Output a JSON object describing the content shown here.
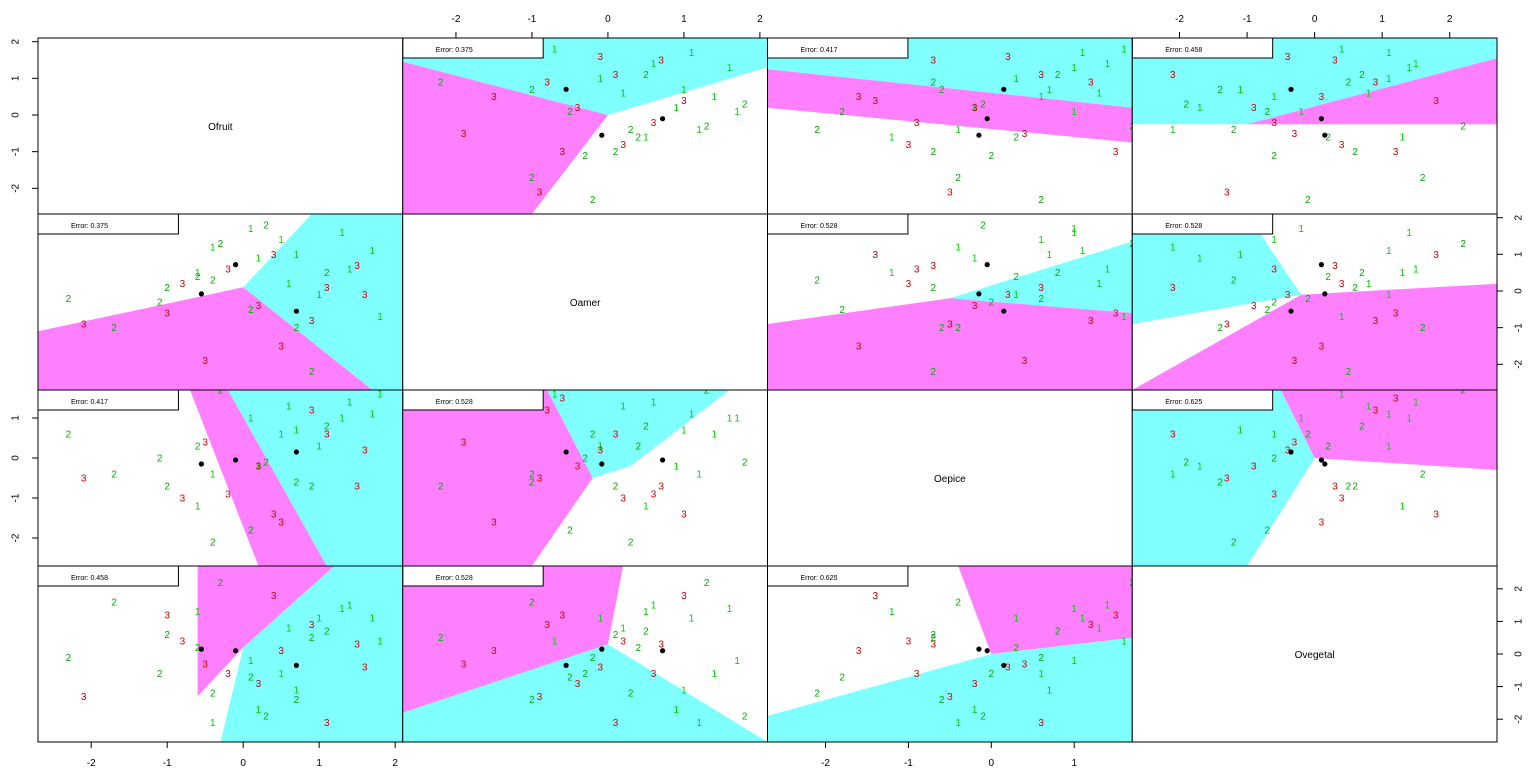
{
  "chart_data": {
    "type": "partition-matrix",
    "variables": [
      "Ofruit",
      "Oamer",
      "Oepice",
      "Ovegetal"
    ],
    "class_colors": {
      "1": "#00cc00",
      "2": "#00aa00",
      "3": "#cc0000"
    },
    "region_colors": {
      "cyan": "#80ffff",
      "magenta": "#ff80ff",
      "white": "#ffffff"
    },
    "centroid_color": "#000000",
    "axis_ticks": {
      "Ofruit": [
        -2,
        -1,
        0,
        1,
        2
      ],
      "Oamer": [
        -2,
        -1,
        0,
        1,
        2
      ],
      "Oepice": [
        -2,
        -1,
        0,
        1
      ],
      "Ovegetal": [
        -2,
        -1,
        0,
        1,
        2
      ]
    },
    "axis_ranges": {
      "Ofruit": [
        -2.7,
        2.1
      ],
      "Oamer": [
        -2.7,
        2.1
      ],
      "Oepice": [
        -2.7,
        1.7
      ],
      "Ovegetal": [
        -2.7,
        2.7
      ]
    },
    "errors": [
      {
        "row": 0,
        "col": 1,
        "label": "Error: 0.375"
      },
      {
        "row": 0,
        "col": 2,
        "label": "Error: 0.417"
      },
      {
        "row": 0,
        "col": 3,
        "label": "Error: 0.458"
      },
      {
        "row": 1,
        "col": 0,
        "label": "Error: 0.375"
      },
      {
        "row": 1,
        "col": 2,
        "label": "Error: 0.528"
      },
      {
        "row": 1,
        "col": 3,
        "label": "Error: 0.528"
      },
      {
        "row": 2,
        "col": 0,
        "label": "Error: 0.417"
      },
      {
        "row": 2,
        "col": 1,
        "label": "Error: 0.528"
      },
      {
        "row": 2,
        "col": 3,
        "label": "Error: 0.625"
      },
      {
        "row": 3,
        "col": 0,
        "label": "Error: 0.458"
      },
      {
        "row": 3,
        "col": 1,
        "label": "Error: 0.528"
      },
      {
        "row": 3,
        "col": 2,
        "label": "Error: 0.625"
      }
    ],
    "points": [
      {
        "Ofruit": 1.3,
        "Oamer": 1.6,
        "Oepice": 1.0,
        "Ovegetal": 1.4,
        "cls": "1"
      },
      {
        "Ofruit": 1.7,
        "Oamer": 1.1,
        "Oepice": 1.1,
        "Ovegetal": 1.1,
        "cls": "1"
      },
      {
        "Ofruit": 0.5,
        "Oamer": 1.4,
        "Oepice": 0.6,
        "Ovegetal": -0.6,
        "cls": "1"
      },
      {
        "Ofruit": 0.7,
        "Oamer": 1.0,
        "Oepice": 0.7,
        "Ovegetal": -1.1,
        "cls": "1"
      },
      {
        "Ofruit": 1.4,
        "Oamer": 0.6,
        "Oepice": 1.4,
        "Ovegetal": 1.5,
        "cls": "1"
      },
      {
        "Ofruit": 1.0,
        "Oamer": -0.1,
        "Oepice": 0.3,
        "Ovegetal": 1.1,
        "cls": "1"
      },
      {
        "Ofruit": 0.2,
        "Oamer": 0.9,
        "Oepice": -0.2,
        "Ovegetal": -1.7,
        "cls": "1"
      },
      {
        "Ofruit": -0.4,
        "Oamer": 1.2,
        "Oepice": -0.4,
        "Ovegetal": -2.1,
        "cls": "1"
      },
      {
        "Ofruit": 1.8,
        "Oamer": -0.7,
        "Oepice": 1.6,
        "Ovegetal": 0.4,
        "cls": "1"
      },
      {
        "Ofruit": 0.6,
        "Oamer": 0.2,
        "Oepice": 1.3,
        "Ovegetal": 0.8,
        "cls": "1"
      },
      {
        "Ofruit": 0.1,
        "Oamer": 1.7,
        "Oepice": 1.0,
        "Ovegetal": -0.2,
        "cls": "1"
      },
      {
        "Ofruit": -0.6,
        "Oamer": 0.5,
        "Oepice": -1.2,
        "Ovegetal": 1.3,
        "cls": "1"
      },
      {
        "Ofruit": -2.3,
        "Oamer": -0.2,
        "Oepice": 0.6,
        "Ovegetal": -0.1,
        "cls": "2"
      },
      {
        "Ofruit": -1.7,
        "Oamer": -1.0,
        "Oepice": -0.4,
        "Ovegetal": 1.6,
        "cls": "2"
      },
      {
        "Ofruit": -1.0,
        "Oamer": 0.1,
        "Oepice": -0.7,
        "Ovegetal": 0.6,
        "cls": "2"
      },
      {
        "Ofruit": -0.3,
        "Oamer": 1.3,
        "Oepice": 1.7,
        "Ovegetal": 2.2,
        "cls": "2"
      },
      {
        "Ofruit": 0.1,
        "Oamer": -0.5,
        "Oepice": -1.8,
        "Ovegetal": -0.7,
        "cls": "2"
      },
      {
        "Ofruit": -1.1,
        "Oamer": -0.3,
        "Oepice": 0.0,
        "Ovegetal": -0.6,
        "cls": "2"
      },
      {
        "Ofruit": 0.9,
        "Oamer": -2.2,
        "Oepice": -0.7,
        "Ovegetal": 0.5,
        "cls": "2"
      },
      {
        "Ofruit": -0.4,
        "Oamer": 0.3,
        "Oepice": -2.1,
        "Ovegetal": -1.2,
        "cls": "2"
      },
      {
        "Ofruit": 0.3,
        "Oamer": 1.8,
        "Oepice": -0.1,
        "Ovegetal": -1.9,
        "cls": "2"
      },
      {
        "Ofruit": -0.6,
        "Oamer": 0.4,
        "Oepice": 0.3,
        "Ovegetal": 0.2,
        "cls": "2"
      },
      {
        "Ofruit": 1.1,
        "Oamer": 0.5,
        "Oepice": 0.8,
        "Ovegetal": 0.7,
        "cls": "2"
      },
      {
        "Ofruit": 0.7,
        "Oamer": -1.0,
        "Oepice": -0.6,
        "Ovegetal": -1.4,
        "cls": "2"
      },
      {
        "Ofruit": -2.1,
        "Oamer": -0.9,
        "Oepice": -0.5,
        "Ovegetal": -1.3,
        "cls": "3"
      },
      {
        "Ofruit": -0.8,
        "Oamer": 0.2,
        "Oepice": -1.0,
        "Ovegetal": 0.4,
        "cls": "3"
      },
      {
        "Ofruit": 0.2,
        "Oamer": -0.4,
        "Oepice": -0.2,
        "Ovegetal": -0.9,
        "cls": "3"
      },
      {
        "Ofruit": 1.5,
        "Oamer": 0.7,
        "Oepice": -0.7,
        "Ovegetal": 0.3,
        "cls": "3"
      },
      {
        "Ofruit": -1.0,
        "Oamer": -0.6,
        "Oepice": 1.5,
        "Ovegetal": 1.2,
        "cls": "3"
      },
      {
        "Ofruit": 0.4,
        "Oamer": 1.0,
        "Oepice": -1.4,
        "Ovegetal": 1.8,
        "cls": "3"
      },
      {
        "Ofruit": 1.1,
        "Oamer": 0.1,
        "Oepice": 0.6,
        "Ovegetal": -2.1,
        "cls": "3"
      },
      {
        "Ofruit": -0.5,
        "Oamer": -1.9,
        "Oepice": 0.4,
        "Ovegetal": -0.3,
        "cls": "3"
      },
      {
        "Ofruit": 0.9,
        "Oamer": -0.8,
        "Oepice": 1.2,
        "Ovegetal": 0.9,
        "cls": "3"
      },
      {
        "Ofruit": -0.2,
        "Oamer": 0.6,
        "Oepice": -0.9,
        "Ovegetal": -0.6,
        "cls": "3"
      },
      {
        "Ofruit": 0.5,
        "Oamer": -1.5,
        "Oepice": -1.6,
        "Ovegetal": 0.1,
        "cls": "3"
      },
      {
        "Ofruit": 1.6,
        "Oamer": -0.1,
        "Oepice": 0.2,
        "Ovegetal": -0.4,
        "cls": "3"
      }
    ],
    "centroids": [
      {
        "Ofruit": -0.55,
        "Oamer": -0.08,
        "Oepice": -0.15,
        "Ovegetal": 0.15
      },
      {
        "Ofruit": -0.1,
        "Oamer": 0.72,
        "Oepice": -0.05,
        "Ovegetal": 0.1
      },
      {
        "Ofruit": 0.7,
        "Oamer": -0.55,
        "Oepice": 0.15,
        "Ovegetal": -0.35
      }
    ],
    "partitions": [
      {
        "row": 0,
        "col": 1,
        "regions": [
          {
            "color": "cyan",
            "poly": [
              [
                -2.7,
                1.45
              ],
              [
                0.0,
                0.0
              ],
              [
                2.1,
                1.3
              ],
              [
                2.1,
                2.1
              ],
              [
                -2.7,
                2.1
              ]
            ]
          },
          {
            "color": "magenta",
            "poly": [
              [
                -2.7,
                1.45
              ],
              [
                0.0,
                0.0
              ],
              [
                -1.0,
                -2.7
              ],
              [
                -2.7,
                -2.7
              ]
            ]
          }
        ]
      },
      {
        "row": 0,
        "col": 2,
        "regions": [
          {
            "color": "cyan",
            "poly": [
              [
                -2.7,
                1.25
              ],
              [
                1.7,
                0.2
              ],
              [
                1.7,
                2.1
              ],
              [
                -2.7,
                2.1
              ]
            ]
          },
          {
            "color": "magenta",
            "poly": [
              [
                -2.7,
                1.25
              ],
              [
                1.7,
                0.2
              ],
              [
                1.7,
                -0.75
              ],
              [
                -2.7,
                0.2
              ]
            ]
          }
        ]
      },
      {
        "row": 0,
        "col": 3,
        "regions": [
          {
            "color": "cyan",
            "poly": [
              [
                -2.7,
                -0.25
              ],
              [
                -1.0,
                -0.25
              ],
              [
                2.7,
                1.55
              ],
              [
                2.7,
                2.1
              ],
              [
                -2.7,
                2.1
              ]
            ]
          },
          {
            "color": "magenta",
            "poly": [
              [
                -1.0,
                -0.25
              ],
              [
                2.7,
                1.55
              ],
              [
                2.7,
                -0.25
              ]
            ]
          }
        ]
      },
      {
        "row": 1,
        "col": 0,
        "regions": [
          {
            "color": "cyan",
            "poly": [
              [
                0.0,
                0.1
              ],
              [
                0.9,
                2.1
              ],
              [
                2.1,
                2.1
              ],
              [
                2.1,
                -2.7
              ],
              [
                1.7,
                -2.7
              ]
            ]
          },
          {
            "color": "magenta",
            "poly": [
              [
                0.0,
                0.1
              ],
              [
                1.7,
                -2.7
              ],
              [
                -2.7,
                -2.7
              ],
              [
                -2.7,
                -1.1
              ]
            ]
          }
        ]
      },
      {
        "row": 1,
        "col": 2,
        "regions": [
          {
            "color": "cyan",
            "poly": [
              [
                -0.5,
                -0.2
              ],
              [
                1.7,
                1.35
              ],
              [
                1.7,
                -0.6
              ]
            ]
          },
          {
            "color": "magenta",
            "poly": [
              [
                -2.7,
                -0.9
              ],
              [
                -0.5,
                -0.2
              ],
              [
                1.7,
                -0.6
              ],
              [
                1.7,
                -2.7
              ],
              [
                -2.7,
                -2.7
              ]
            ]
          }
        ]
      },
      {
        "row": 1,
        "col": 3,
        "regions": [
          {
            "color": "cyan",
            "poly": [
              [
                -2.7,
                2.1
              ],
              [
                -1.0,
                2.1
              ],
              [
                -0.2,
                -0.1
              ],
              [
                -2.7,
                -0.9
              ]
            ]
          },
          {
            "color": "magenta",
            "poly": [
              [
                -2.7,
                -2.7
              ],
              [
                -0.2,
                -0.1
              ],
              [
                2.7,
                0.2
              ],
              [
                2.7,
                -2.7
              ]
            ]
          }
        ]
      },
      {
        "row": 2,
        "col": 0,
        "regions": [
          {
            "color": "magenta",
            "poly": [
              [
                -0.7,
                1.7
              ],
              [
                -0.2,
                1.7
              ],
              [
                1.1,
                -2.7
              ],
              [
                0.2,
                -2.7
              ]
            ]
          },
          {
            "color": "cyan",
            "poly": [
              [
                -0.2,
                1.7
              ],
              [
                2.1,
                1.7
              ],
              [
                2.1,
                -2.7
              ],
              [
                1.1,
                -2.7
              ]
            ]
          }
        ]
      },
      {
        "row": 2,
        "col": 1,
        "regions": [
          {
            "color": "magenta",
            "poly": [
              [
                -2.7,
                1.7
              ],
              [
                -0.8,
                1.7
              ],
              [
                -0.2,
                -0.5
              ],
              [
                -1.0,
                -2.7
              ],
              [
                -2.7,
                -2.7
              ]
            ]
          },
          {
            "color": "cyan",
            "poly": [
              [
                -0.8,
                1.7
              ],
              [
                1.6,
                1.7
              ],
              [
                0.3,
                -0.2
              ],
              [
                -0.2,
                -0.5
              ]
            ]
          }
        ]
      },
      {
        "row": 2,
        "col": 3,
        "regions": [
          {
            "color": "cyan",
            "poly": [
              [
                -2.7,
                1.7
              ],
              [
                -0.5,
                1.7
              ],
              [
                0.0,
                0.0
              ],
              [
                -1.0,
                -2.7
              ],
              [
                -2.7,
                -2.7
              ]
            ]
          },
          {
            "color": "magenta",
            "poly": [
              [
                0.0,
                0.0
              ],
              [
                -0.5,
                1.7
              ],
              [
                2.7,
                1.7
              ],
              [
                2.7,
                -0.3
              ]
            ]
          }
        ]
      },
      {
        "row": 3,
        "col": 0,
        "regions": [
          {
            "color": "magenta",
            "poly": [
              [
                -0.6,
                2.7
              ],
              [
                1.2,
                2.7
              ],
              [
                0.0,
                0.2
              ],
              [
                -0.6,
                -1.3
              ]
            ]
          },
          {
            "color": "cyan",
            "poly": [
              [
                1.2,
                2.7
              ],
              [
                2.1,
                2.7
              ],
              [
                2.1,
                -2.7
              ],
              [
                -0.3,
                -2.7
              ],
              [
                0.0,
                0.2
              ]
            ]
          }
        ]
      },
      {
        "row": 3,
        "col": 1,
        "regions": [
          {
            "color": "magenta",
            "poly": [
              [
                -2.7,
                2.7
              ],
              [
                0.2,
                2.7
              ],
              [
                0.0,
                0.3
              ],
              [
                -2.7,
                -1.8
              ]
            ]
          },
          {
            "color": "cyan",
            "poly": [
              [
                -2.7,
                -1.8
              ],
              [
                0.0,
                0.3
              ],
              [
                2.1,
                -2.7
              ],
              [
                -2.7,
                -2.7
              ]
            ]
          }
        ]
      },
      {
        "row": 3,
        "col": 2,
        "regions": [
          {
            "color": "magenta",
            "poly": [
              [
                -0.4,
                2.7
              ],
              [
                1.7,
                2.7
              ],
              [
                1.7,
                0.5
              ],
              [
                0.0,
                0.0
              ]
            ]
          },
          {
            "color": "cyan",
            "poly": [
              [
                -2.7,
                -1.9
              ],
              [
                0.0,
                0.0
              ],
              [
                1.7,
                0.5
              ],
              [
                1.7,
                -2.7
              ],
              [
                -2.7,
                -2.7
              ]
            ]
          }
        ]
      }
    ]
  }
}
